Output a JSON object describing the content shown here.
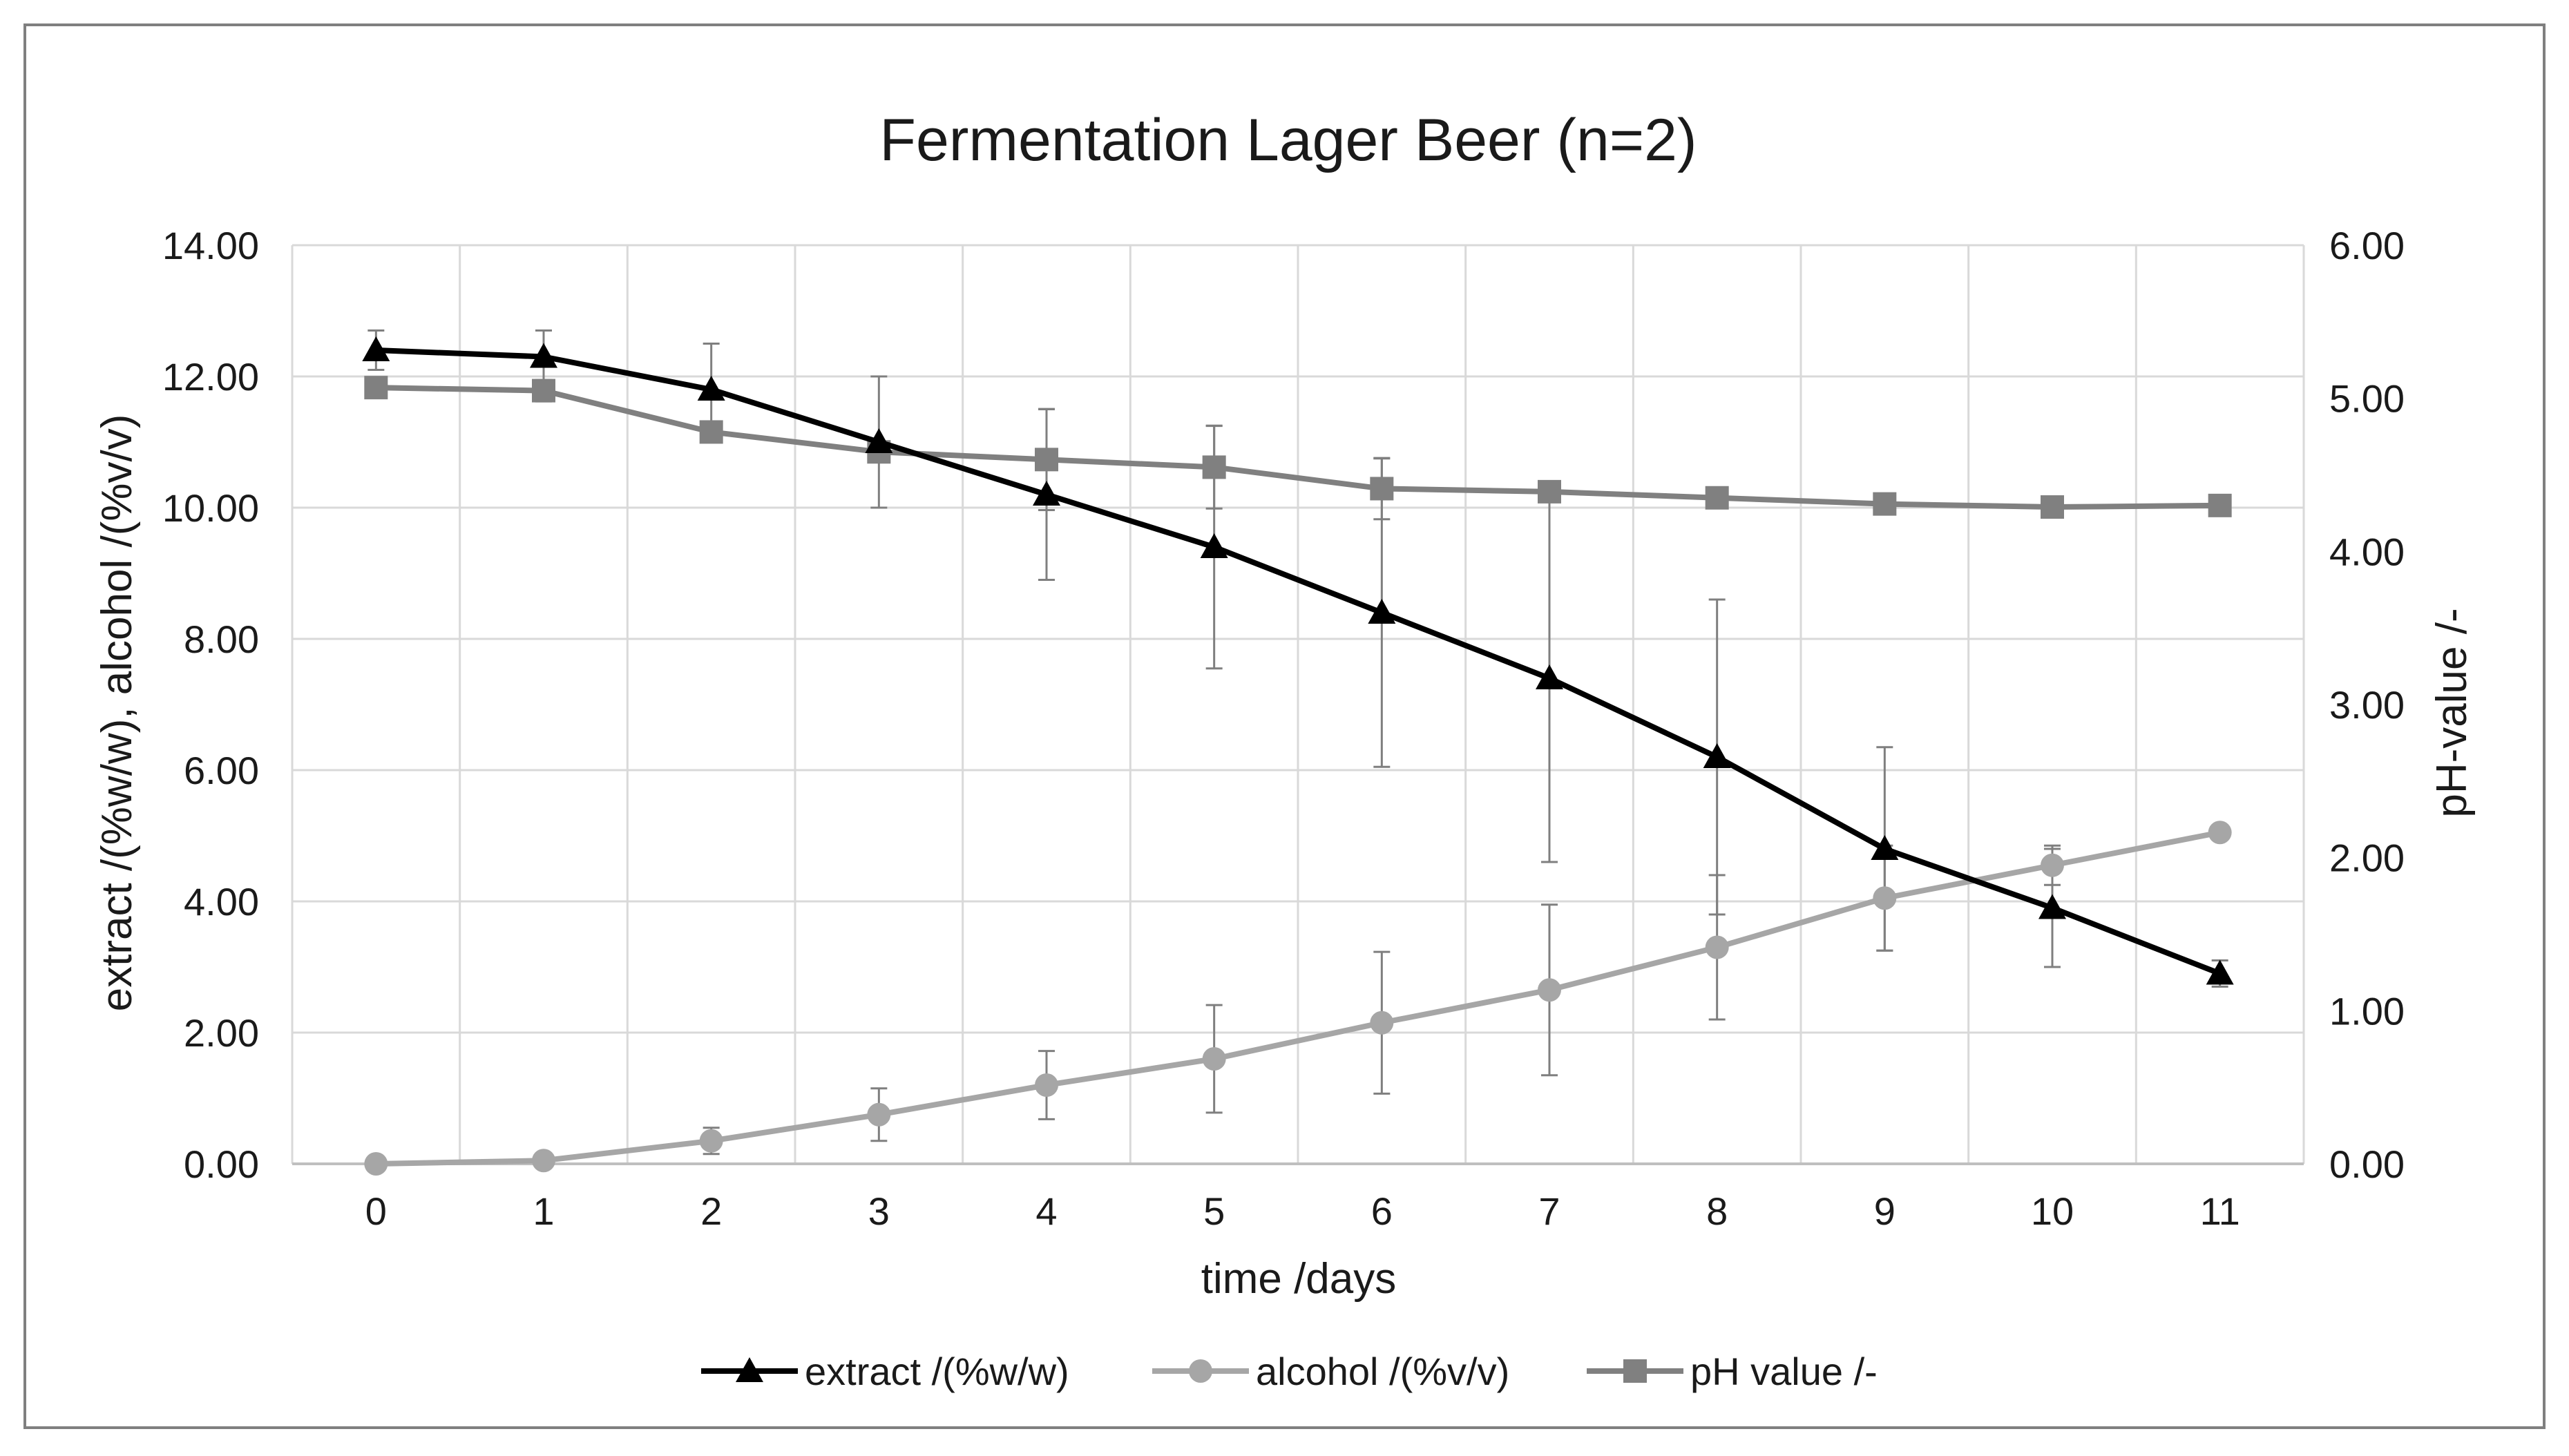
{
  "chart_data": {
    "type": "line",
    "title": "Fermentation Lager Beer (n=2)",
    "xlabel": "time /days",
    "ylabel_left": "extract /(%w/w), alcohol /(%v/v)",
    "ylabel_right": "pH-value /-",
    "x": [
      0,
      1,
      2,
      3,
      4,
      5,
      6,
      7,
      8,
      9,
      10,
      11
    ],
    "x_ticks": [
      "0",
      "1",
      "2",
      "3",
      "4",
      "5",
      "6",
      "7",
      "8",
      "9",
      "10",
      "11"
    ],
    "ylim_left": [
      0,
      14
    ],
    "ylim_right": [
      0,
      6
    ],
    "y_ticks_left": [
      "0.00",
      "2.00",
      "4.00",
      "6.00",
      "8.00",
      "10.00",
      "12.00",
      "14.00"
    ],
    "y_ticks_right": [
      "0.00",
      "1.00",
      "2.00",
      "3.00",
      "4.00",
      "5.00",
      "6.00"
    ],
    "grid": true,
    "legend_position": "bottom",
    "series": [
      {
        "name": "extract /(%w/w)",
        "axis": "left",
        "marker": "triangle",
        "color": "#000000",
        "values": [
          12.4,
          12.3,
          11.8,
          11.0,
          10.2,
          9.4,
          8.4,
          7.4,
          6.2,
          4.8,
          3.9,
          2.9
        ],
        "error": [
          0.3,
          0.4,
          0.7,
          1.0,
          1.3,
          1.85,
          2.35,
          2.8,
          2.4,
          1.55,
          0.9,
          0.2
        ]
      },
      {
        "name": "alcohol /(%v/v)",
        "axis": "left",
        "marker": "circle",
        "color": "#a6a6a6",
        "values": [
          0.0,
          0.05,
          0.35,
          0.75,
          1.2,
          1.6,
          2.15,
          2.65,
          3.3,
          4.05,
          4.55,
          5.05
        ],
        "error": [
          0.0,
          0.0,
          0.2,
          0.4,
          0.52,
          0.82,
          1.08,
          1.3,
          1.1,
          0.8,
          0.3,
          0.0
        ]
      },
      {
        "name": "pH value /-",
        "axis": "right",
        "marker": "square",
        "color": "#808080",
        "values": [
          5.07,
          5.05,
          4.78,
          4.65,
          4.6,
          4.55,
          4.41,
          4.39,
          4.35,
          4.31,
          4.29,
          4.3
        ],
        "error": [
          0.06,
          0.07,
          0.0,
          0.0,
          0.33,
          0.27,
          0.2,
          0.0,
          0.0,
          0.0,
          0.0,
          0.0
        ]
      }
    ]
  }
}
